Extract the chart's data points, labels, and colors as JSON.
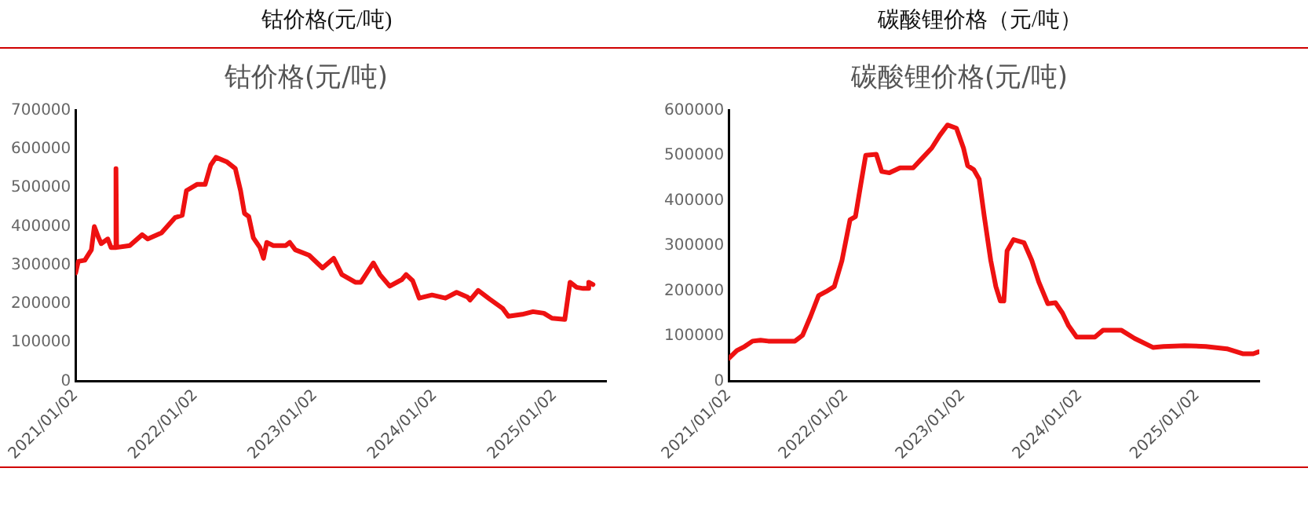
{
  "chart_data": [
    {
      "type": "line",
      "title": "钴价格(元/吨)",
      "subtitle": "钴价格(元/吨)",
      "x": [
        "2021-01-02",
        "2021-01-10",
        "2021-01-30",
        "2021-02-19",
        "2021-02-28",
        "2021-03-13",
        "2021-03-21",
        "2021-04-10",
        "2021-04-20",
        "2021-05-04",
        "2021-05-05",
        "2021-05-07",
        "2021-06-16",
        "2021-07-24",
        "2021-08-10",
        "2021-09-21",
        "2021-11-01",
        "2021-11-23",
        "2021-12-06",
        "2022-01-07",
        "2022-02-01",
        "2022-02-18",
        "2022-03-06",
        "2022-04-09",
        "2022-05-04",
        "2022-05-20",
        "2022-06-01",
        "2022-06-14",
        "2022-06-28",
        "2022-07-18",
        "2022-07-29",
        "2022-08-08",
        "2022-08-28",
        "2022-10-05",
        "2022-10-17",
        "2022-11-03",
        "2022-12-15",
        "2023-01-25",
        "2023-02-28",
        "2023-03-25",
        "2023-05-05",
        "2023-05-22",
        "2023-06-29",
        "2023-07-19",
        "2023-08-18",
        "2023-09-24",
        "2023-10-07",
        "2023-10-27",
        "2023-11-16",
        "2023-12-25",
        "2024-02-04",
        "2024-03-09",
        "2024-04-11",
        "2024-04-19",
        "2024-05-14",
        "2024-06-17",
        "2024-07-28",
        "2024-08-14",
        "2024-09-25",
        "2024-10-28",
        "2024-11-30",
        "2024-12-25",
        "2025-02-02",
        "2025-02-18",
        "2025-03-10",
        "2025-03-30",
        "2025-04-13",
        "2025-04-16",
        "2025-04-29"
      ],
      "series": [
        {
          "color": "#ee1111",
          "values": [
            280000,
            310000,
            313000,
            340000,
            400000,
            371000,
            356000,
            368000,
            346000,
            346000,
            550000,
            346000,
            351000,
            379000,
            368000,
            384000,
            423000,
            429000,
            493000,
            509000,
            509000,
            559000,
            579000,
            567000,
            550000,
            493000,
            434000,
            426000,
            371000,
            346000,
            318000,
            359000,
            351000,
            351000,
            359000,
            340000,
            326000,
            293000,
            318000,
            276000,
            256000,
            256000,
            306000,
            276000,
            246000,
            263000,
            276000,
            260000,
            215000,
            223000,
            215000,
            230000,
            218000,
            210000,
            235000,
            213000,
            188000,
            168000,
            173000,
            180000,
            176000,
            163000,
            160000,
            256000,
            243000,
            240000,
            240000,
            256000,
            250000
          ]
        }
      ],
      "xlim": [
        "2021-01-02",
        "2025-06-08"
      ],
      "xticks": [
        {
          "value": "2021-01-02",
          "label": "2021/01/02"
        },
        {
          "value": "2022-01-02",
          "label": "2022/01/02"
        },
        {
          "value": "2023-01-02",
          "label": "2023/01/02"
        },
        {
          "value": "2024-01-02",
          "label": "2024/01/02"
        },
        {
          "value": "2025-01-02",
          "label": "2025/01/02"
        }
      ],
      "ylim": [
        0,
        700000
      ],
      "yticks": [
        0,
        100000,
        200000,
        300000,
        400000,
        500000,
        600000,
        700000
      ]
    },
    {
      "type": "line",
      "title": "碳酸锂价格（元/吨）",
      "subtitle": "碳酸锂价格(元/吨)",
      "x": [
        "2021-01-02",
        "2021-01-27",
        "2021-02-20",
        "2021-03-17",
        "2021-04-11",
        "2021-05-05",
        "2021-07-27",
        "2021-08-20",
        "2021-09-14",
        "2021-10-09",
        "2021-11-02",
        "2021-11-27",
        "2021-12-21",
        "2022-01-15",
        "2022-02-01",
        "2022-02-17",
        "2022-03-05",
        "2022-04-07",
        "2022-04-24",
        "2022-05-18",
        "2022-06-20",
        "2022-07-31",
        "2022-08-25",
        "2022-09-27",
        "2022-10-22",
        "2022-11-15",
        "2022-12-13",
        "2023-01-04",
        "2023-01-17",
        "2023-02-05",
        "2023-02-22",
        "2023-03-10",
        "2023-03-30",
        "2023-04-15",
        "2023-04-29",
        "2023-05-10",
        "2023-05-20",
        "2023-06-09",
        "2023-07-12",
        "2023-08-05",
        "2023-08-27",
        "2023-09-24",
        "2023-10-18",
        "2023-11-09",
        "2023-11-28",
        "2023-12-23",
        "2024-02-18",
        "2024-03-14",
        "2024-05-11",
        "2024-06-21",
        "2024-08-17",
        "2024-09-19",
        "2024-11-24",
        "2025-01-29",
        "2025-04-05",
        "2025-05-24",
        "2025-06-26",
        "2025-07-12"
      ],
      "series": [
        {
          "color": "#ee1111",
          "values": [
            51000,
            68000,
            77000,
            89000,
            91000,
            89000,
            89000,
            102000,
            144000,
            190000,
            199000,
            210000,
            268000,
            358000,
            365000,
            434000,
            501000,
            503000,
            465000,
            462000,
            473000,
            473000,
            492000,
            517000,
            545000,
            568000,
            561000,
            517000,
            478000,
            469000,
            448000,
            365000,
            268000,
            210000,
            178000,
            178000,
            289000,
            314000,
            307000,
            268000,
            220000,
            172000,
            174000,
            151000,
            123000,
            98000,
            98000,
            113000,
            113000,
            95000,
            75000,
            77000,
            79000,
            77000,
            72000,
            61000,
            61000,
            65000
          ]
        }
      ],
      "xlim": [
        "2021-01-02",
        "2025-07-15"
      ],
      "xticks": [
        {
          "value": "2021-01-02",
          "label": "2021/01/02"
        },
        {
          "value": "2022-01-02",
          "label": "2022/01/02"
        },
        {
          "value": "2023-01-02",
          "label": "2023/01/02"
        },
        {
          "value": "2024-01-02",
          "label": "2024/01/02"
        },
        {
          "value": "2025-01-02",
          "label": "2025/01/02"
        }
      ],
      "ylim": [
        0,
        600000
      ],
      "yticks": [
        0,
        100000,
        200000,
        300000,
        400000,
        500000,
        600000
      ]
    }
  ]
}
